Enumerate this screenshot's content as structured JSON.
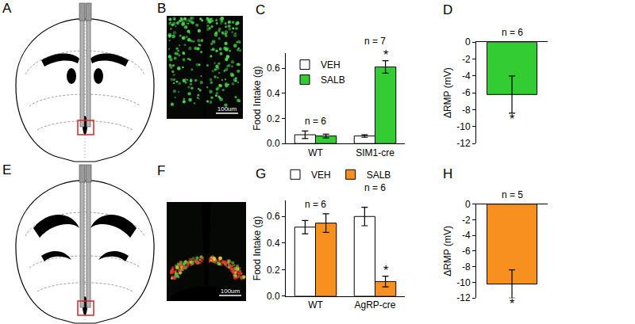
{
  "figure": {
    "diagrams": [
      {
        "panel": "A"
      },
      {
        "panel": "E"
      }
    ],
    "images": [
      {
        "panel": "B",
        "scale_bar": "100um"
      },
      {
        "panel": "F",
        "scale_bar": "100um"
      }
    ]
  },
  "chart_data": [
    {
      "panel": "C",
      "type": "bar",
      "categories": [
        "WT",
        "SIM1-cre"
      ],
      "series": [
        {
          "name": "VEH",
          "color": "#ffffff",
          "values": [
            0.07,
            0.06
          ],
          "errors": [
            0.03,
            0.01
          ]
        },
        {
          "name": "SALB",
          "color": "#33cc33",
          "values": [
            0.06,
            0.61
          ],
          "errors": [
            0.015,
            0.05
          ],
          "significance": [
            null,
            "*"
          ]
        }
      ],
      "n_labels": [
        "n = 6",
        "n = 7"
      ],
      "y_label": "Food Intake (g)",
      "ylim": [
        0,
        0.72
      ],
      "yticks": [
        {
          "value": 0,
          "label": "0.0"
        },
        0.2,
        0.4,
        0.6
      ],
      "legend": "upper left",
      "grid": false
    },
    {
      "panel": "D",
      "type": "bar",
      "categories": [
        null
      ],
      "values": [
        -6.2
      ],
      "errors": [
        2.2
      ],
      "significance": [
        "*"
      ],
      "color": "#33cc33",
      "n_labels": [
        "n = 6"
      ],
      "y_label": "ΔRMP (mV)",
      "ylim": [
        -12,
        0
      ],
      "yticks": [
        -12,
        -10,
        -8,
        -6,
        -4,
        -2,
        0
      ],
      "tick_labels": "y",
      "grid": false
    },
    {
      "panel": "G",
      "type": "bar",
      "categories": [
        "WT",
        "AgRP-cre"
      ],
      "series": [
        {
          "name": "VEH",
          "color": "#ffffff",
          "values": [
            0.52,
            0.6
          ],
          "errors": [
            0.05,
            0.07
          ]
        },
        {
          "name": "SALB",
          "color": "#f7901e",
          "values": [
            0.55,
            0.11
          ],
          "errors": [
            0.07,
            0.04
          ],
          "significance": [
            null,
            "*"
          ]
        }
      ],
      "n_labels": [
        "n = 6",
        "n = 6"
      ],
      "y_label": "Food Intake (g)",
      "ylim": [
        0,
        0.72
      ],
      "yticks": [
        {
          "value": 0,
          "label": "0.0"
        },
        0.2,
        0.4,
        0.6
      ],
      "legend": "top",
      "grid": false
    },
    {
      "panel": "H",
      "type": "bar",
      "categories": [
        null
      ],
      "values": [
        -10.2
      ],
      "errors": [
        1.8
      ],
      "significance": [
        "*"
      ],
      "color": "#f7901e",
      "n_labels": [
        "n = 5"
      ],
      "y_label": "ΔRMP (mV)",
      "ylim": [
        -12,
        0
      ],
      "yticks": [
        -12,
        -10,
        -8,
        -6,
        -4,
        -2,
        0
      ],
      "tick_labels": "y",
      "grid": false
    }
  ]
}
